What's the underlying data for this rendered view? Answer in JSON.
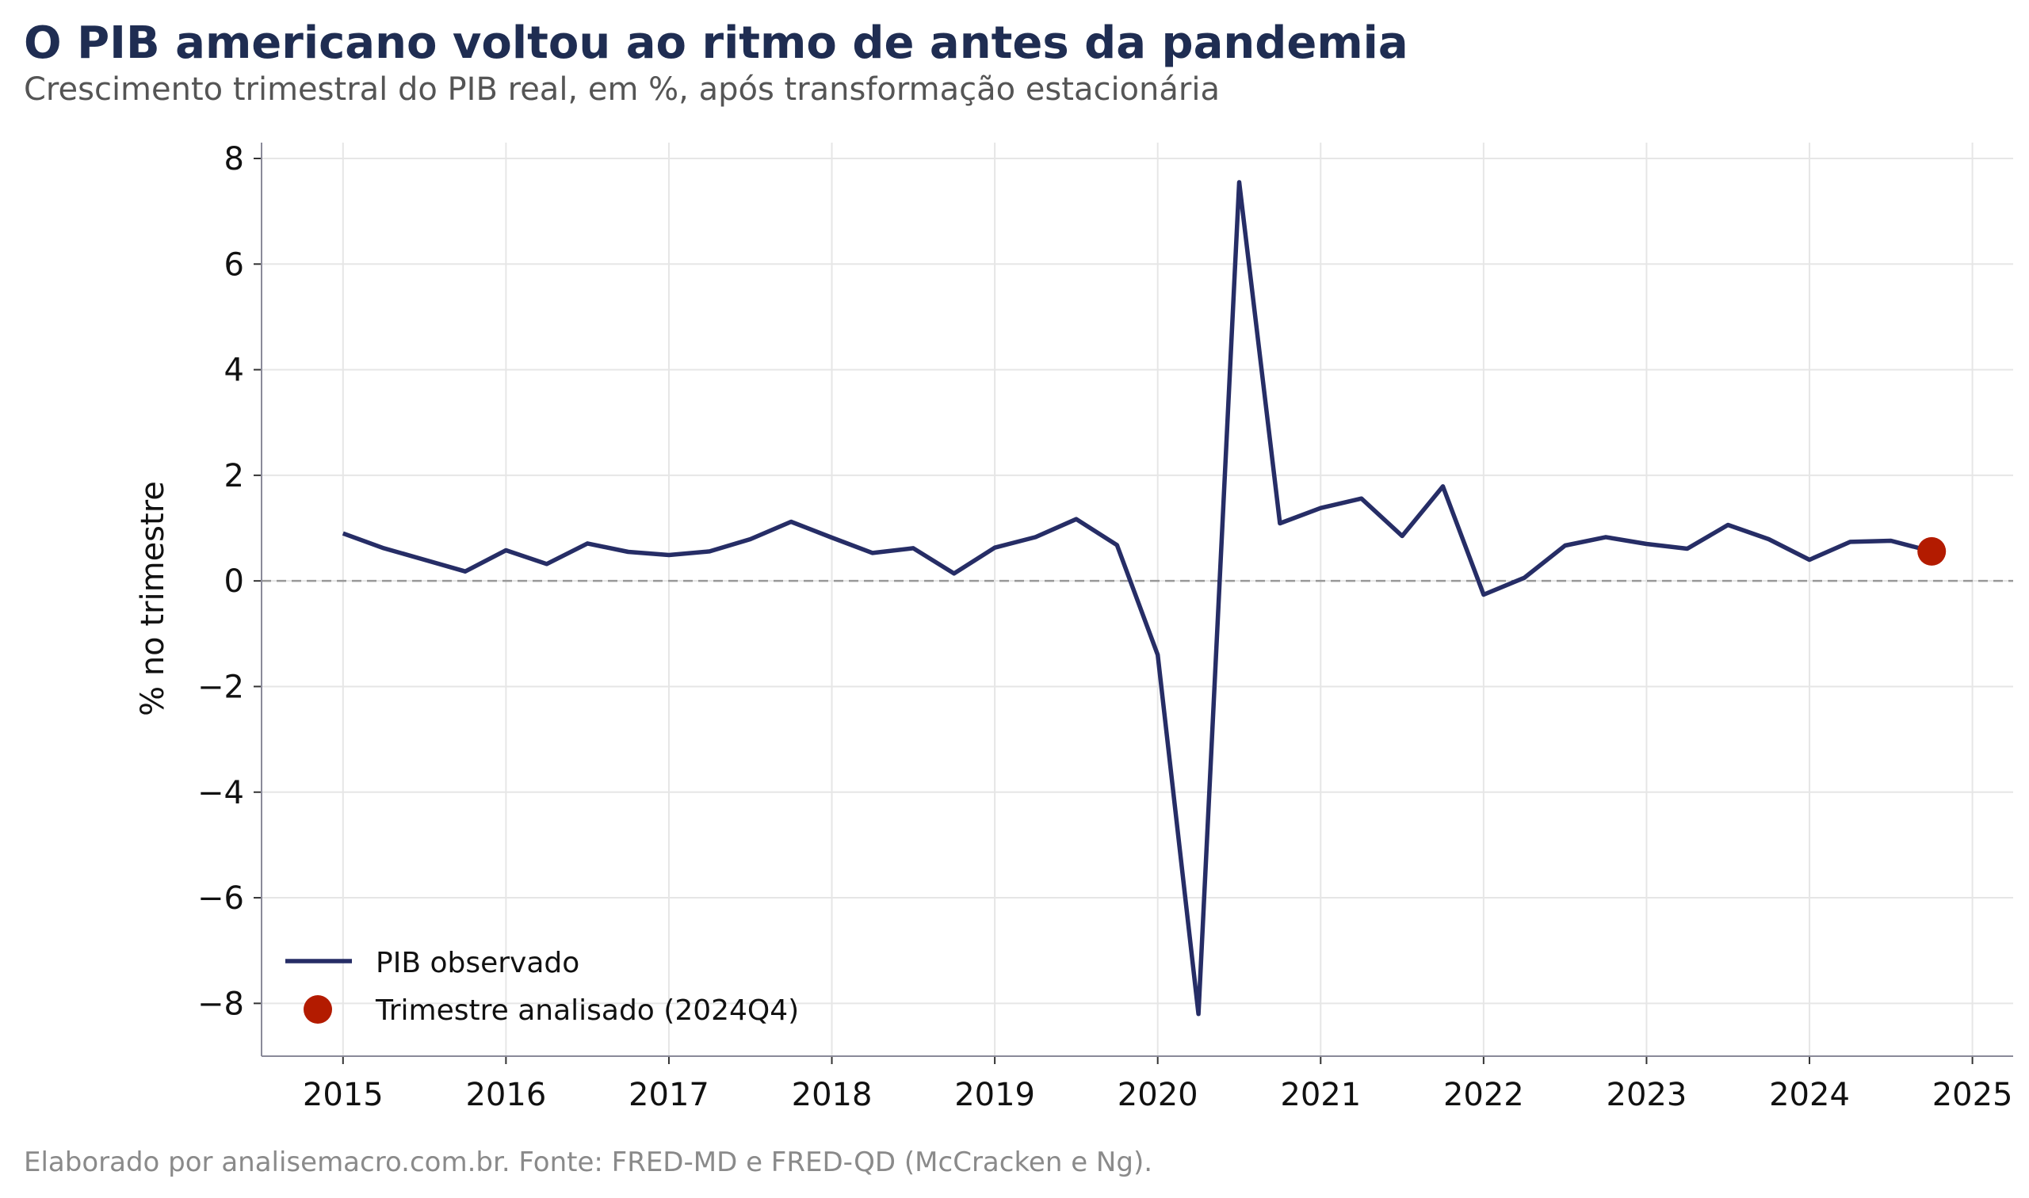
{
  "header": {
    "title": "O PIB americano voltou ao ritmo de antes da pandemia",
    "subtitle": "Crescimento trimestral do PIB real, em %, após transformação estacionária"
  },
  "caption": "Elaborado por analisemacro.com.br. Fonte: FRED-MD e FRED-QD (McCracken e Ng).",
  "colors": {
    "series_line": "#262d66",
    "highlight_point": "#b31b00",
    "grid": "#e6e6e6",
    "zero_line": "#999999",
    "title": "#1f2d52"
  },
  "chart_data": {
    "type": "line",
    "ylabel": "% no trimestre",
    "xlabel": "",
    "xlim": [
      2014.5,
      2025.25
    ],
    "ylim": [
      -9,
      8.3
    ],
    "grid": true,
    "legend_placement": "bottom-left",
    "x_ticks": [
      "2015",
      "2016",
      "2017",
      "2018",
      "2019",
      "2020",
      "2021",
      "2022",
      "2023",
      "2024",
      "2025"
    ],
    "y_ticks": [
      "8",
      "6",
      "4",
      "2",
      "0",
      "−2",
      "−4",
      "−6",
      "−8"
    ],
    "reference_line": {
      "y": 0,
      "style": "dashed"
    },
    "series": [
      {
        "name": "PIB observado",
        "quarters": [
          "2015Q1",
          "2015Q2",
          "2015Q3",
          "2015Q4",
          "2016Q1",
          "2016Q2",
          "2016Q3",
          "2016Q4",
          "2017Q1",
          "2017Q2",
          "2017Q3",
          "2017Q4",
          "2018Q1",
          "2018Q2",
          "2018Q3",
          "2018Q4",
          "2019Q1",
          "2019Q2",
          "2019Q3",
          "2019Q4",
          "2020Q1",
          "2020Q2",
          "2020Q3",
          "2020Q4",
          "2021Q1",
          "2021Q2",
          "2021Q3",
          "2021Q4",
          "2022Q1",
          "2022Q2",
          "2022Q3",
          "2022Q4",
          "2023Q1",
          "2023Q2",
          "2023Q3",
          "2023Q4",
          "2024Q1",
          "2024Q2",
          "2024Q3",
          "2024Q4"
        ],
        "values": [
          0.9,
          0.62,
          0.4,
          0.18,
          0.58,
          0.32,
          0.71,
          0.55,
          0.49,
          0.56,
          0.79,
          1.12,
          0.82,
          0.53,
          0.62,
          0.14,
          0.63,
          0.83,
          1.17,
          0.68,
          -1.4,
          -8.2,
          7.55,
          1.09,
          1.38,
          1.56,
          0.85,
          1.79,
          -0.26,
          0.06,
          0.67,
          0.83,
          0.7,
          0.61,
          1.06,
          0.79,
          0.4,
          0.74,
          0.76,
          0.56
        ]
      },
      {
        "name": "Trimestre analisado (2024Q4)",
        "quarter": "2024Q4",
        "value": 0.56
      }
    ]
  }
}
